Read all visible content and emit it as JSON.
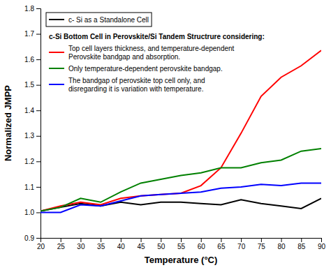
{
  "chart_data": {
    "type": "line",
    "x": [
      20,
      25,
      30,
      35,
      40,
      45,
      50,
      55,
      60,
      65,
      70,
      75,
      80,
      85,
      90
    ],
    "xlabel": "Temperature (°C)",
    "ylabel": "Normalized JMPP",
    "xlim": [
      20,
      90
    ],
    "ylim": [
      0.9,
      1.8
    ],
    "xticks": [
      20,
      25,
      30,
      35,
      40,
      45,
      50,
      55,
      60,
      65,
      70,
      75,
      80,
      85,
      90
    ],
    "yticks": [
      0.9,
      {
        "value": 1.0,
        "label": "1.0"
      },
      1.1,
      1.2,
      1.3,
      1.4,
      1.5,
      1.6,
      1.7,
      1.8
    ],
    "grid": false,
    "legend": "upper left",
    "legend_title": "c-Si Bottom Cell in Perovskite/Si Tandem Structrure considering:",
    "series": [
      {
        "name": "c- Si as a Standalone Cell",
        "color": "#000000",
        "values": [
          1.005,
          1.02,
          1.035,
          1.025,
          1.04,
          1.03,
          1.04,
          1.04,
          1.035,
          1.03,
          1.05,
          1.035,
          1.025,
          1.015,
          1.055
        ]
      },
      {
        "name": "Top cell layers thickness, and temperature-dependent\nPerovskite bandgap and absorption.",
        "color": "#ff0000",
        "values": [
          1.005,
          1.025,
          1.04,
          1.03,
          1.055,
          1.065,
          1.07,
          1.075,
          1.105,
          1.175,
          1.31,
          1.455,
          1.53,
          1.575,
          1.635
        ]
      },
      {
        "name": "Only temperature-dependent perovskite bandgap.",
        "color": "#008000",
        "values": [
          1.005,
          1.02,
          1.055,
          1.04,
          1.08,
          1.115,
          1.13,
          1.145,
          1.155,
          1.175,
          1.175,
          1.195,
          1.205,
          1.24,
          1.25
        ]
      },
      {
        "name": "The bandgap of  perovskite top cell only, and\ndisregarding it is variation with temperature.",
        "color": "#0000ff",
        "values": [
          1.0,
          1.0,
          1.03,
          1.025,
          1.045,
          1.065,
          1.07,
          1.075,
          1.08,
          1.095,
          1.1,
          1.11,
          1.105,
          1.115,
          1.115
        ]
      }
    ]
  }
}
